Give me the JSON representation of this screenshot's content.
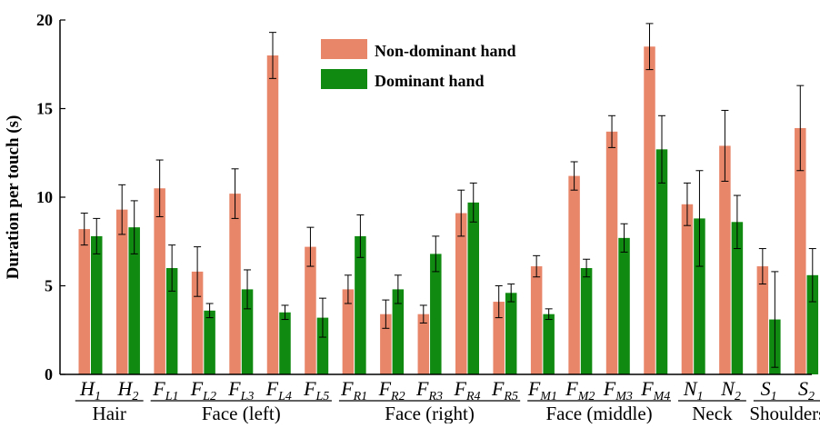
{
  "chart_data": {
    "type": "bar",
    "title": "",
    "xlabel": "",
    "ylabel": "Duration per touch (s)",
    "ylim": [
      0,
      20
    ],
    "yticks": [
      "0",
      "5",
      "10",
      "15",
      "20"
    ],
    "grid": false,
    "legend_position": "top-center",
    "categories": [
      {
        "main": "H",
        "sub": "1"
      },
      {
        "main": "H",
        "sub": "2"
      },
      {
        "main": "F",
        "sub": "L1"
      },
      {
        "main": "F",
        "sub": "L2"
      },
      {
        "main": "F",
        "sub": "L3"
      },
      {
        "main": "F",
        "sub": "L4"
      },
      {
        "main": "F",
        "sub": "L5"
      },
      {
        "main": "F",
        "sub": "R1"
      },
      {
        "main": "F",
        "sub": "R2"
      },
      {
        "main": "F",
        "sub": "R3"
      },
      {
        "main": "F",
        "sub": "R4"
      },
      {
        "main": "F",
        "sub": "R5"
      },
      {
        "main": "F",
        "sub": "M1"
      },
      {
        "main": "F",
        "sub": "M2"
      },
      {
        "main": "F",
        "sub": "M3"
      },
      {
        "main": "F",
        "sub": "M4"
      },
      {
        "main": "N",
        "sub": "1"
      },
      {
        "main": "N",
        "sub": "2"
      },
      {
        "main": "S",
        "sub": "1"
      },
      {
        "main": "S",
        "sub": "2"
      }
    ],
    "groups": [
      {
        "label": "Hair",
        "from": 0,
        "to": 1
      },
      {
        "label": "Face (left)",
        "from": 2,
        "to": 6
      },
      {
        "label": "Face (right)",
        "from": 7,
        "to": 11
      },
      {
        "label": "Face (middle)",
        "from": 12,
        "to": 15
      },
      {
        "label": "Neck",
        "from": 16,
        "to": 17
      },
      {
        "label": "Shoulders",
        "from": 18,
        "to": 19
      }
    ],
    "series": [
      {
        "name": "Non-dominant hand",
        "color": "#E8866A",
        "values": [
          8.2,
          9.3,
          10.5,
          5.8,
          10.2,
          18.0,
          7.2,
          4.8,
          3.4,
          3.4,
          9.1,
          4.1,
          6.1,
          11.2,
          13.7,
          18.5,
          9.6,
          12.9,
          6.1,
          13.9
        ],
        "error": [
          0.9,
          1.4,
          1.6,
          1.4,
          1.4,
          1.3,
          1.1,
          0.8,
          0.8,
          0.5,
          1.3,
          0.9,
          0.6,
          0.8,
          0.9,
          1.3,
          1.2,
          2.0,
          1.0,
          2.4
        ]
      },
      {
        "name": "Dominant hand",
        "color": "#108A10",
        "values": [
          7.8,
          8.3,
          6.0,
          3.6,
          4.8,
          3.5,
          3.2,
          7.8,
          4.8,
          6.8,
          9.7,
          4.6,
          3.4,
          6.0,
          7.7,
          12.7,
          8.8,
          8.6,
          3.1,
          5.6
        ],
        "error": [
          1.0,
          1.5,
          1.3,
          0.4,
          1.1,
          0.4,
          1.1,
          1.2,
          0.8,
          1.0,
          1.1,
          0.5,
          0.3,
          0.5,
          0.8,
          1.9,
          2.7,
          1.5,
          2.7,
          1.5
        ]
      }
    ]
  }
}
